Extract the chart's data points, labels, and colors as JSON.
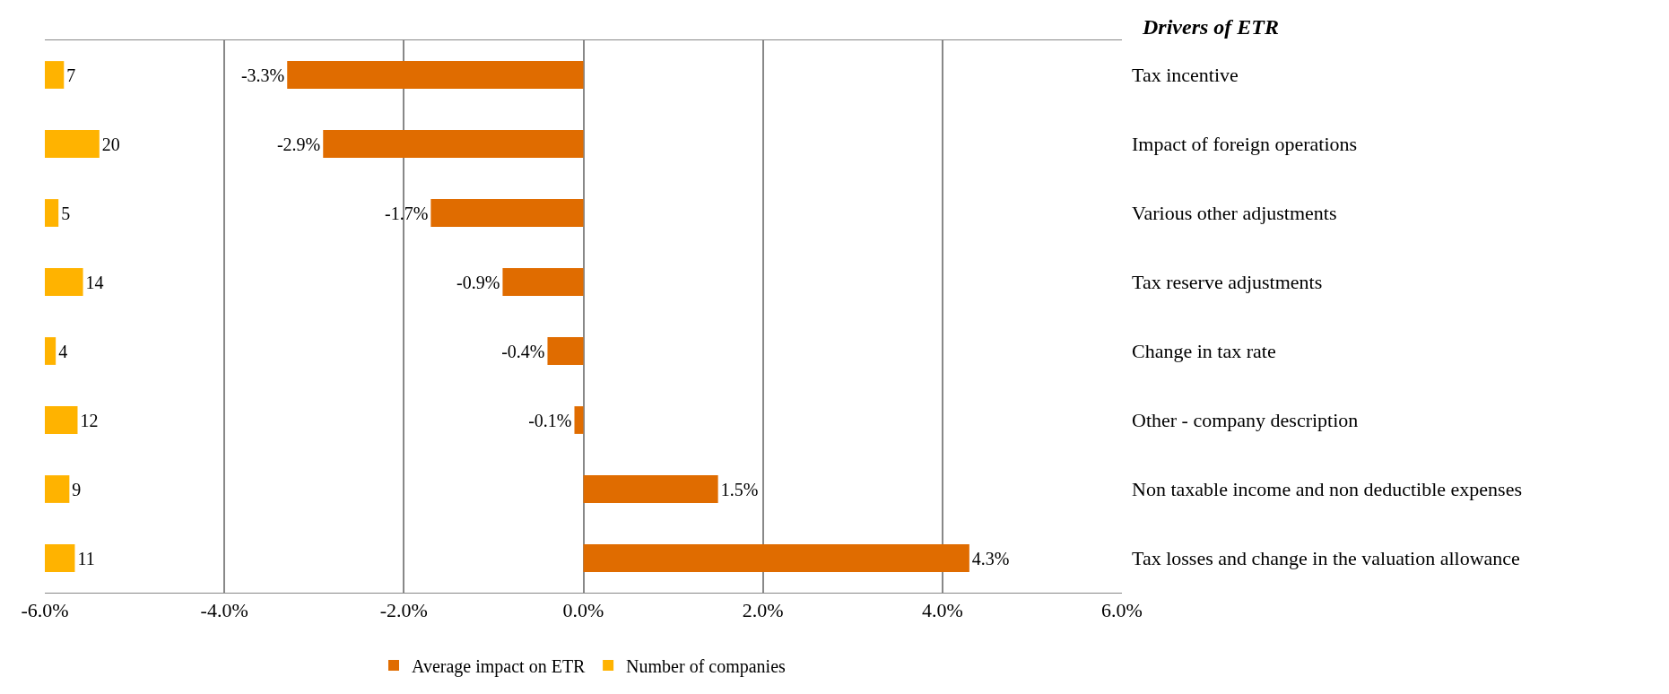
{
  "chart_data": [
    {
      "type": "bar",
      "orientation": "horizontal",
      "ylabel": "Drivers of ETR",
      "categories": [
        "Tax incentive",
        "Impact of foreign operations",
        "Various other adjustments",
        "Tax reserve adjustments",
        "Change in tax rate",
        "Other - company description",
        "Non taxable income and non deductible expenses",
        "Tax losses and change in the valuation allowance"
      ],
      "series": [
        {
          "name": "Average impact on ETR",
          "color": "#e06c00",
          "values": [
            -3.3,
            -2.9,
            -1.7,
            -0.9,
            -0.4,
            -0.1,
            1.5,
            4.3
          ],
          "value_labels": [
            "-3.3%",
            "-2.9%",
            "-1.7%",
            "-0.9%",
            "-0.4%",
            "-0.1%",
            "1.5%",
            "4.3%"
          ]
        }
      ],
      "xlim": [
        -6,
        6
      ],
      "xticks": [
        {
          "value": -6,
          "label": "-6.0%"
        },
        {
          "value": -4,
          "label": "-4.0%"
        },
        {
          "value": -2,
          "label": "-2.0%"
        },
        {
          "value": 0,
          "label": "0.0%"
        },
        {
          "value": 2,
          "label": "2.0%"
        },
        {
          "value": 4,
          "label": "4.0%"
        },
        {
          "value": 6,
          "label": "6.0%"
        }
      ],
      "grid": "x",
      "legend": "bottom"
    },
    {
      "type": "bar",
      "orientation": "horizontal",
      "categories": [
        null,
        null,
        null,
        null,
        null,
        null,
        null,
        null
      ],
      "series": [
        {
          "name": "Number of companies",
          "color": "#ffb300",
          "values": [
            7,
            20,
            5,
            14,
            4,
            12,
            9,
            11
          ],
          "data_labels": true
        }
      ],
      "xlim": [
        0,
        395
      ],
      "tick_labels": false,
      "legend": "bottom"
    }
  ]
}
